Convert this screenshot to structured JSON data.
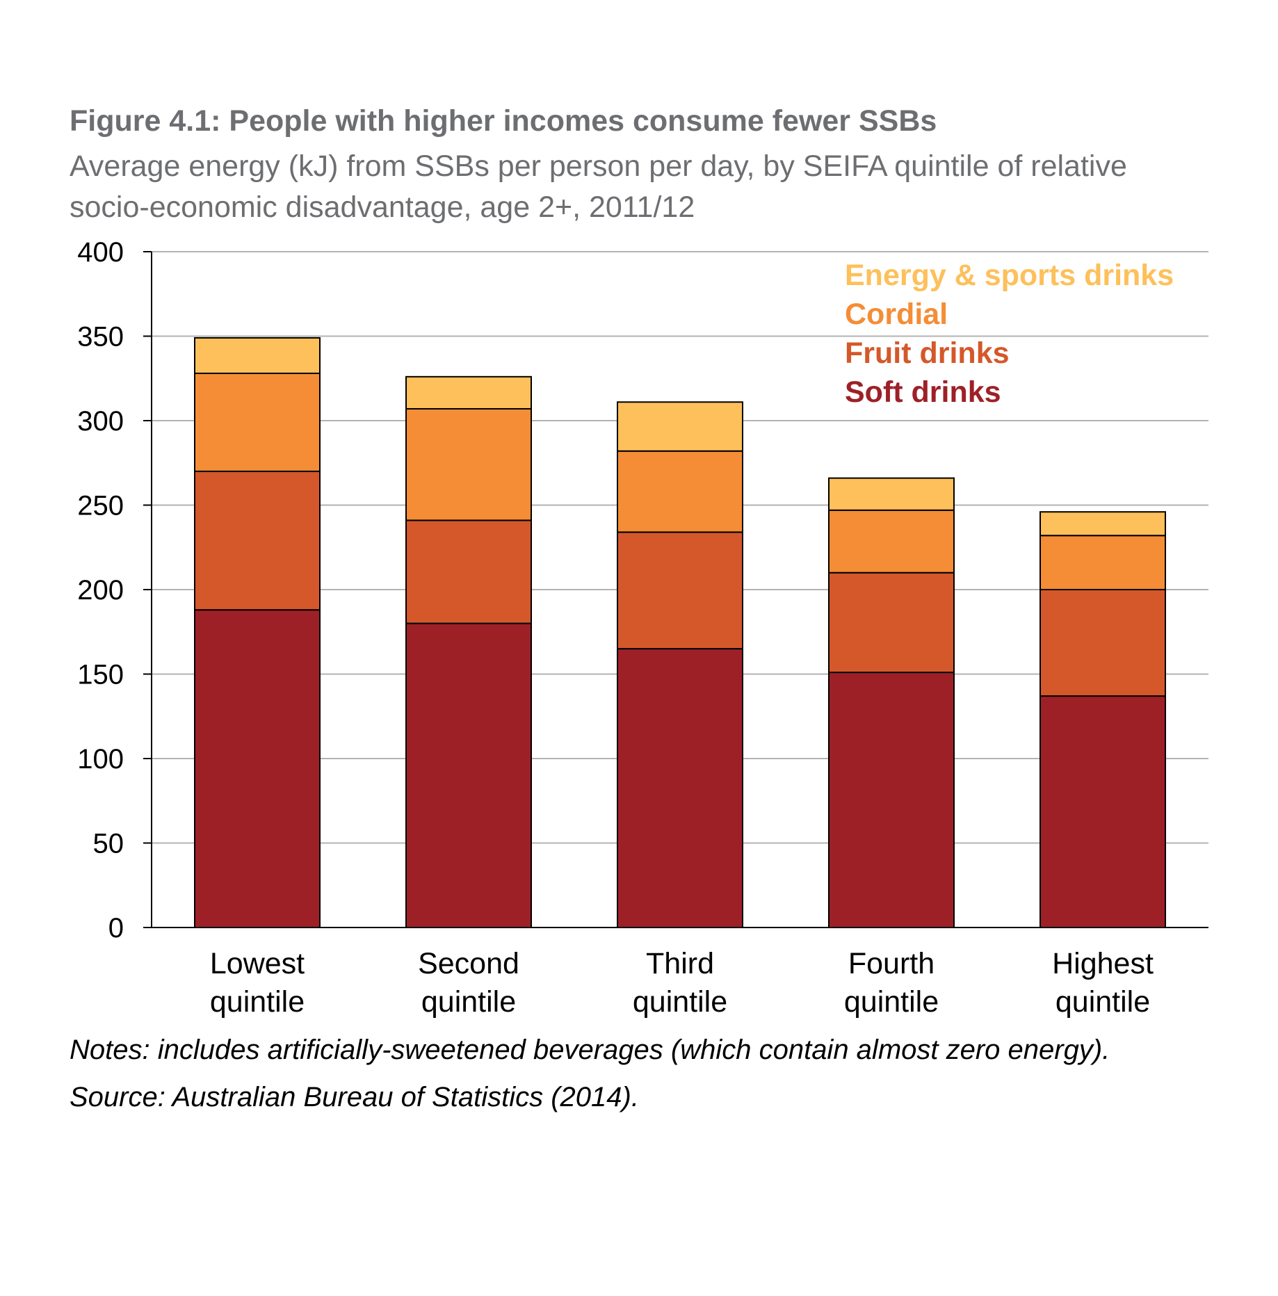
{
  "chart_data": {
    "type": "bar",
    "stacked": true,
    "title": "Figure 4.1: People with higher incomes consume fewer SSBs",
    "subtitle": "Average energy (kJ) from SSBs per person per day, by SEIFA quintile of relative socio-economic disadvantage, age 2+, 2011/12",
    "categories": [
      [
        "Lowest",
        "quintile"
      ],
      [
        "Second",
        "quintile"
      ],
      [
        "Third",
        "quintile"
      ],
      [
        "Fourth",
        "quintile"
      ],
      [
        "Highest",
        "quintile"
      ]
    ],
    "series": [
      {
        "name": "Soft drinks",
        "color": "#9e2027",
        "values": [
          188,
          180,
          165,
          151,
          137
        ]
      },
      {
        "name": "Fruit drinks",
        "color": "#d4582a",
        "values": [
          82,
          61,
          69,
          59,
          63
        ]
      },
      {
        "name": "Cordial",
        "color": "#f48d36",
        "values": [
          58,
          66,
          48,
          37,
          32
        ]
      },
      {
        "name": "Energy & sports drinks",
        "color": "#fdc05a",
        "values": [
          21,
          19,
          29,
          19,
          14
        ]
      }
    ],
    "legend_order": [
      "Energy & sports drinks",
      "Cordial",
      "Fruit drinks",
      "Soft drinks"
    ],
    "legend_position": "top-right",
    "ylim": [
      0,
      400
    ],
    "yticks": [
      0,
      50,
      100,
      150,
      200,
      250,
      300,
      350,
      400
    ],
    "xlabel": "",
    "ylabel": "",
    "grid": true
  },
  "notes": "Notes: includes artificially-sweetened beverages (which contain almost zero energy).",
  "source": "Source: Australian Bureau of Statistics (2014)."
}
